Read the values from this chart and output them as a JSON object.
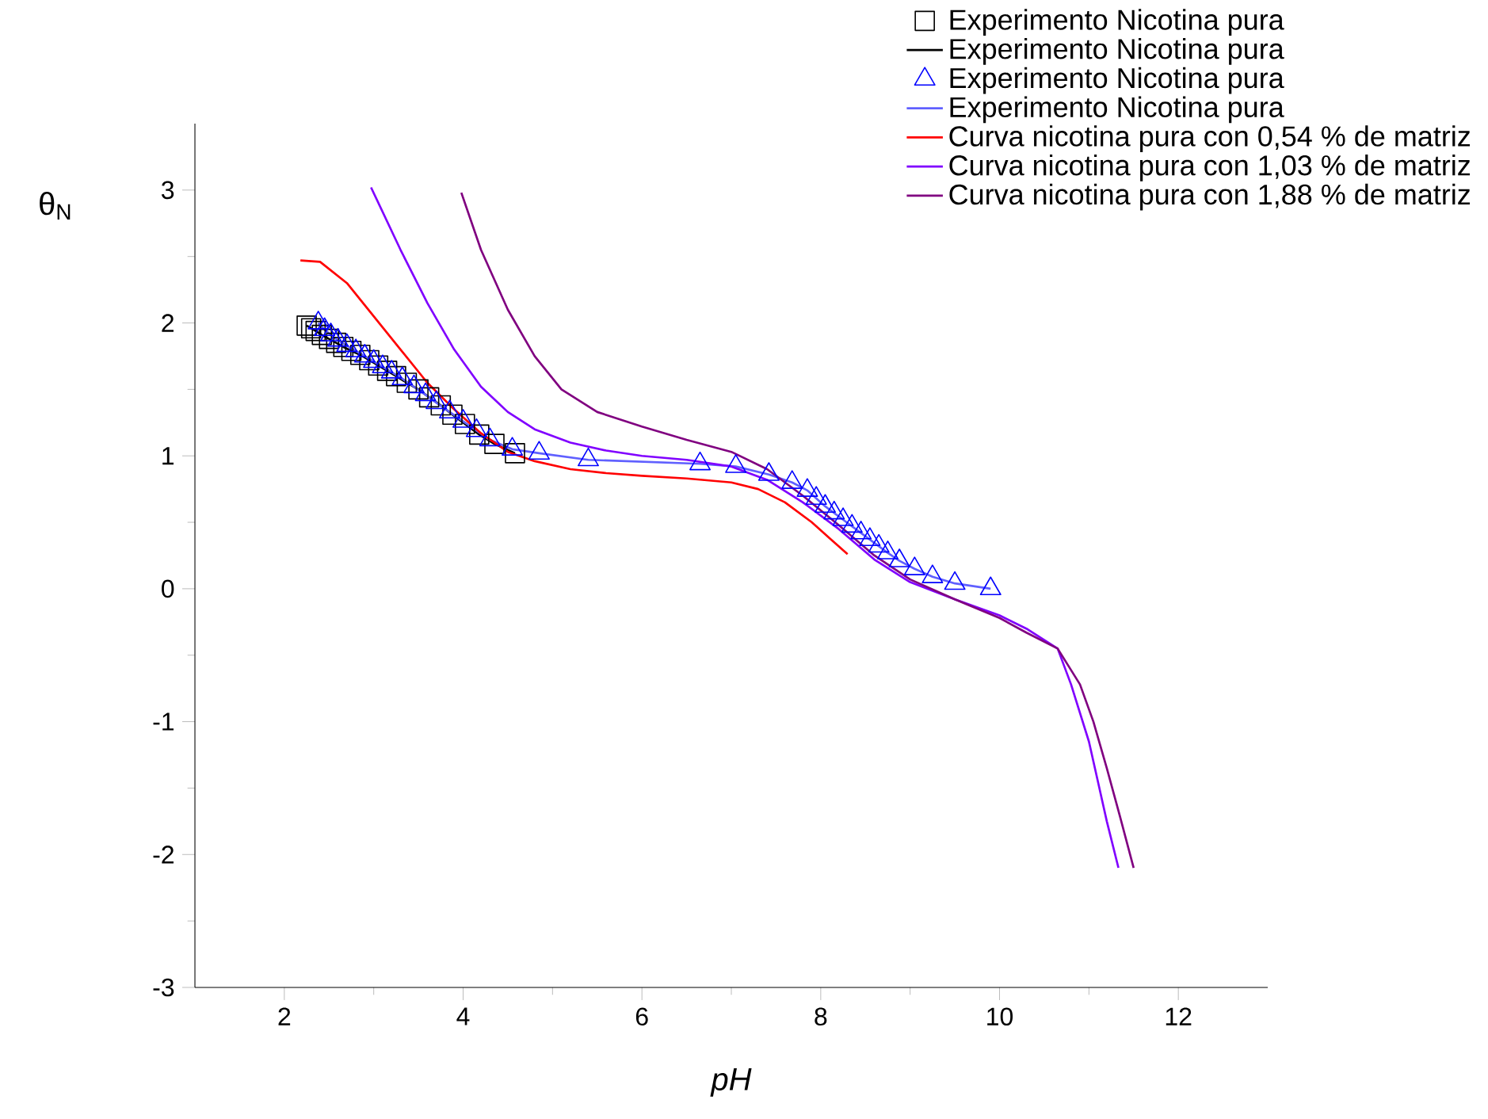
{
  "chart_data": {
    "type": "line",
    "xlabel": "pH",
    "ylabel": "θ$_{N}$",
    "xlim": [
      1,
      13
    ],
    "ylim": [
      -3,
      3.5
    ],
    "xticks": [
      2,
      4,
      6,
      8,
      10,
      12
    ],
    "yticks": [
      -3,
      -2,
      -1,
      0,
      1,
      2,
      3
    ],
    "legend": "top right",
    "grid": false,
    "series": [
      {
        "name": "Experimento Nicotina pura",
        "type": "scatter",
        "marker": "square",
        "color": "#000000",
        "x": [
          2.25,
          2.3,
          2.35,
          2.42,
          2.5,
          2.58,
          2.66,
          2.75,
          2.85,
          2.95,
          3.05,
          3.15,
          3.25,
          3.37,
          3.5,
          3.62,
          3.75,
          3.88,
          4.02,
          4.18,
          4.35,
          4.58
        ],
        "values": [
          1.98,
          1.96,
          1.94,
          1.91,
          1.88,
          1.85,
          1.82,
          1.79,
          1.76,
          1.72,
          1.68,
          1.64,
          1.6,
          1.55,
          1.5,
          1.44,
          1.38,
          1.31,
          1.24,
          1.16,
          1.09,
          1.02
        ]
      },
      {
        "name": "Experimento Nicotina pura",
        "marker": "none",
        "color": "#000000",
        "x": [
          2.25,
          2.3,
          2.35,
          2.42,
          2.5,
          2.58,
          2.66,
          2.75,
          2.85,
          2.95,
          3.05,
          3.15,
          3.25,
          3.37,
          3.5,
          3.62,
          3.75,
          3.88,
          4.02,
          4.18,
          4.35,
          4.58
        ],
        "values": [
          1.98,
          1.96,
          1.94,
          1.91,
          1.88,
          1.85,
          1.82,
          1.79,
          1.76,
          1.72,
          1.68,
          1.64,
          1.6,
          1.55,
          1.5,
          1.44,
          1.38,
          1.31,
          1.24,
          1.16,
          1.09,
          1.02
        ]
      },
      {
        "name": "Experimento Nicotina pura",
        "type": "scatter",
        "marker": "triangle",
        "color": "#0000ff",
        "x": [
          2.38,
          2.45,
          2.52,
          2.6,
          2.7,
          2.8,
          2.9,
          3.0,
          3.1,
          3.2,
          3.32,
          3.45,
          3.58,
          3.7,
          3.85,
          4.0,
          4.15,
          4.3,
          4.55,
          4.85,
          5.4,
          6.65,
          7.05,
          7.42,
          7.68,
          7.85,
          7.95,
          8.05,
          8.15,
          8.25,
          8.35,
          8.45,
          8.55,
          8.65,
          8.75,
          8.88,
          9.05,
          9.25,
          9.5,
          9.9
        ],
        "values": [
          2.0,
          1.95,
          1.91,
          1.87,
          1.83,
          1.79,
          1.75,
          1.71,
          1.67,
          1.63,
          1.58,
          1.52,
          1.46,
          1.4,
          1.33,
          1.26,
          1.19,
          1.12,
          1.05,
          1.02,
          0.97,
          0.94,
          0.92,
          0.86,
          0.8,
          0.74,
          0.68,
          0.62,
          0.57,
          0.52,
          0.47,
          0.42,
          0.37,
          0.32,
          0.27,
          0.21,
          0.15,
          0.09,
          0.04,
          0.0
        ]
      },
      {
        "name": "Experimento Nicotina pura",
        "marker": "none",
        "color": "#6060ff",
        "x": [
          2.38,
          2.45,
          2.52,
          2.6,
          2.7,
          2.8,
          2.9,
          3.0,
          3.1,
          3.2,
          3.32,
          3.45,
          3.58,
          3.7,
          3.85,
          4.0,
          4.15,
          4.3,
          4.55,
          4.85,
          5.4,
          6.65,
          7.05,
          7.42,
          7.68,
          7.85,
          7.95,
          8.05,
          8.15,
          8.25,
          8.35,
          8.45,
          8.55,
          8.65,
          8.75,
          8.88,
          9.05,
          9.25,
          9.5,
          9.9
        ],
        "values": [
          2.0,
          1.95,
          1.91,
          1.87,
          1.83,
          1.79,
          1.75,
          1.71,
          1.67,
          1.63,
          1.58,
          1.52,
          1.46,
          1.4,
          1.33,
          1.26,
          1.19,
          1.12,
          1.05,
          1.02,
          0.97,
          0.94,
          0.92,
          0.86,
          0.8,
          0.74,
          0.68,
          0.62,
          0.57,
          0.52,
          0.47,
          0.42,
          0.37,
          0.32,
          0.27,
          0.21,
          0.15,
          0.09,
          0.04,
          0.0
        ]
      },
      {
        "name": "Curva nicotina pura con 0,54 % de matriz",
        "marker": "none",
        "color": "#ff0000",
        "x": [
          2.18,
          2.4,
          2.7,
          3.0,
          3.3,
          3.6,
          3.9,
          4.2,
          4.5,
          4.8,
          5.2,
          5.6,
          6.0,
          6.5,
          7.0,
          7.3,
          7.6,
          7.9,
          8.1,
          8.3
        ],
        "values": [
          2.47,
          2.46,
          2.3,
          2.05,
          1.8,
          1.55,
          1.35,
          1.17,
          1.03,
          0.96,
          0.9,
          0.87,
          0.85,
          0.83,
          0.8,
          0.75,
          0.65,
          0.5,
          0.38,
          0.26
        ]
      },
      {
        "name": "Curva nicotina pura con 1,03 % de matriz",
        "marker": "none",
        "color": "#8000ff",
        "x": [
          2.97,
          3.3,
          3.6,
          3.9,
          4.2,
          4.5,
          4.8,
          5.2,
          5.6,
          6.0,
          6.5,
          7.0,
          7.4,
          7.8,
          8.2,
          8.6,
          9.0,
          9.5,
          10.0,
          10.3,
          10.65,
          10.8,
          11.0,
          11.1,
          11.2,
          11.33
        ],
        "values": [
          3.02,
          2.55,
          2.15,
          1.8,
          1.52,
          1.33,
          1.2,
          1.1,
          1.04,
          1.0,
          0.97,
          0.92,
          0.82,
          0.65,
          0.45,
          0.22,
          0.05,
          -0.08,
          -0.2,
          -0.3,
          -0.45,
          -0.72,
          -1.15,
          -1.45,
          -1.75,
          -2.1
        ]
      },
      {
        "name": "Curva nicotina pura con 1,88 % de matriz",
        "marker": "none",
        "color": "#800080",
        "x": [
          3.98,
          4.2,
          4.5,
          4.8,
          5.1,
          5.5,
          6.0,
          6.5,
          7.0,
          7.4,
          7.8,
          8.2,
          8.6,
          9.0,
          9.5,
          10.0,
          10.3,
          10.65,
          10.9,
          11.05,
          11.2,
          11.35,
          11.5
        ],
        "values": [
          2.98,
          2.55,
          2.1,
          1.75,
          1.5,
          1.33,
          1.22,
          1.12,
          1.03,
          0.9,
          0.7,
          0.48,
          0.25,
          0.07,
          -0.08,
          -0.22,
          -0.33,
          -0.45,
          -0.72,
          -1.0,
          -1.35,
          -1.72,
          -2.1
        ]
      }
    ]
  }
}
